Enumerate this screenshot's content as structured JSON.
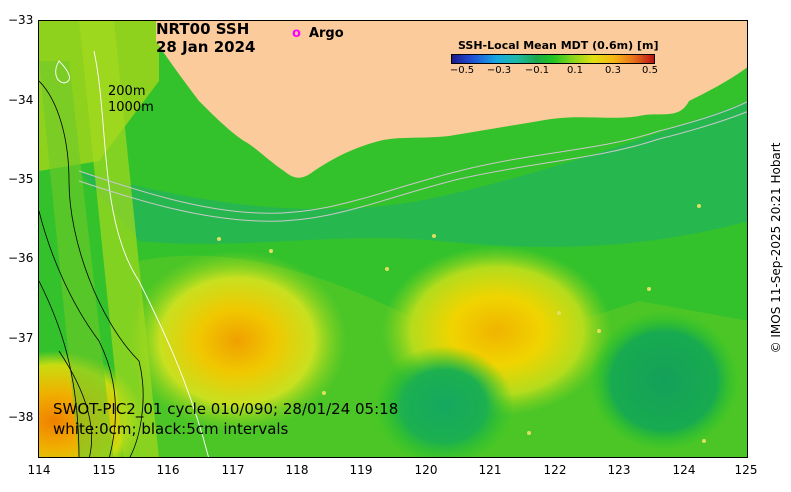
{
  "title": {
    "product": "NRT00 SSH",
    "date": "28 Jan 2024"
  },
  "argo_legend": {
    "marker": "o",
    "label": "Argo"
  },
  "contour_legend": {
    "line1": "200m",
    "line2": "1000m"
  },
  "colorbar": {
    "title": "SSH-Local Mean MDT (0.6m) [m]",
    "ticks": [
      "−0.5",
      "−0.3",
      "−0.1",
      "0.1",
      "0.3",
      "0.5"
    ]
  },
  "swot": {
    "line1": "SWOT-PIC2_01 cycle 010/090; 28/01/24 05:18",
    "line2": "white:0cm; black:5cm intervals"
  },
  "credit": "© IMOS 11-Sep-2025 20:21 Hobart",
  "axes": {
    "lat_ticks": [
      "−33",
      "−34",
      "−35",
      "−36",
      "−37",
      "−38"
    ],
    "lon_ticks": [
      "114",
      "115",
      "116",
      "117",
      "118",
      "119",
      "120",
      "121",
      "122",
      "123",
      "124",
      "125"
    ]
  },
  "colors": {
    "land": "#fbcb9c",
    "argo": "#ff00ff"
  }
}
